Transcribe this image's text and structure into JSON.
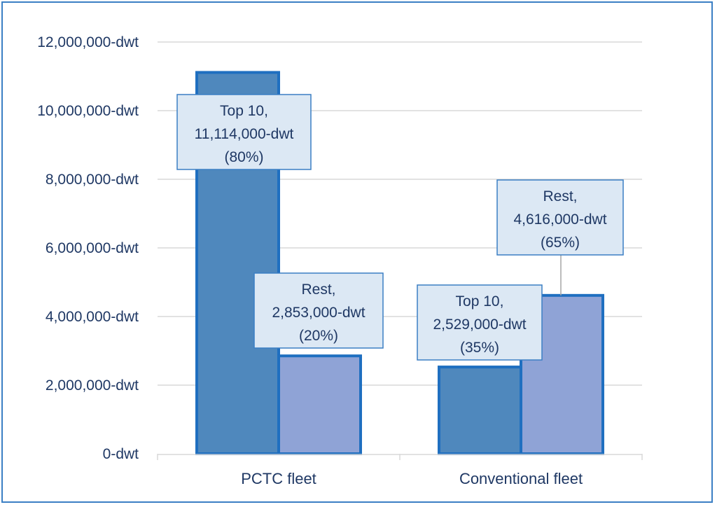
{
  "chart_data": {
    "type": "bar",
    "categories": [
      "PCTC fleet",
      "Conventional fleet"
    ],
    "series": [
      {
        "name": "Top 10",
        "values": [
          11114000,
          2529000
        ]
      },
      {
        "name": "Rest",
        "values": [
          2853000,
          4616000
        ]
      }
    ],
    "data_labels": [
      [
        "Top 10,",
        "11,114,000-dwt",
        "(80%)"
      ],
      [
        "Rest,",
        "2,853,000-dwt",
        "(20%)"
      ],
      [
        "Top 10,",
        "2,529,000-dwt",
        "(35%)"
      ],
      [
        "Rest,",
        "4,616,000-dwt",
        "(65%)"
      ]
    ],
    "y_ticks": [
      "0-dwt",
      "2,000,000-dwt",
      "4,000,000-dwt",
      "6,000,000-dwt",
      "8,000,000-dwt",
      "10,000,000-dwt",
      "12,000,000-dwt"
    ],
    "y_tick_values": [
      0,
      2000000,
      4000000,
      6000000,
      8000000,
      10000000,
      12000000
    ],
    "ylim": [
      0,
      12000000
    ],
    "grid": true,
    "title": "",
    "xlabel": "",
    "ylabel": "",
    "colors": {
      "top10_fill": "#4f88bd",
      "rest_fill": "#8fa3d6",
      "bar_border": "#1f6fc0",
      "label_bg": "#dce8f4",
      "label_border": "#3b7fc4",
      "text": "#1f3864",
      "grid": "#d9d9d9",
      "frame": "#3b7fc4"
    }
  }
}
